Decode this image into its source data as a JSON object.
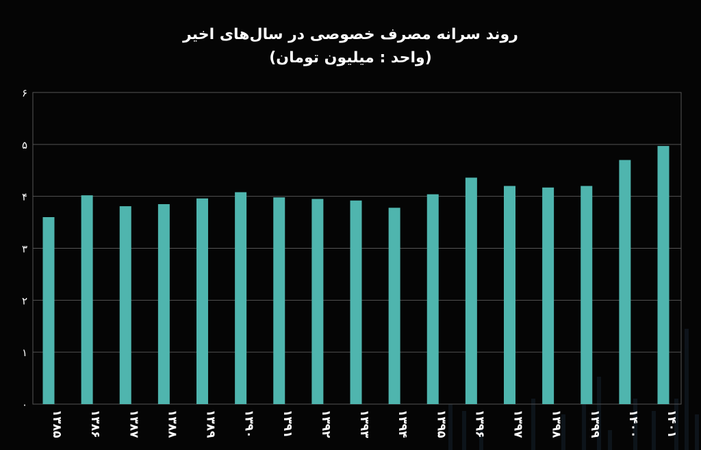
{
  "chart_data": {
    "type": "bar",
    "title": "روند سرانه مصرف خصوصی در سال‌های اخیر",
    "subtitle": "(واحد : میلیون تومان)",
    "categories": [
      "۱۳۸۵",
      "۱۳۸۶",
      "۱۳۸۷",
      "۱۳۸۸",
      "۱۳۸۹",
      "۱۳۹۰",
      "۱۳۹۱",
      "۱۳۹۲",
      "۱۳۹۳",
      "۱۳۹۴",
      "۱۳۹۵",
      "۱۳۹۶",
      "۱۳۹۷",
      "۱۳۹۸",
      "۱۳۹۹",
      "۱۴۰۰",
      "۱۴۰۱"
    ],
    "values": [
      3.6,
      4.02,
      3.81,
      3.85,
      3.96,
      4.08,
      3.98,
      3.95,
      3.92,
      3.78,
      4.04,
      4.36,
      4.2,
      4.17,
      4.2,
      4.7,
      4.97
    ],
    "ylim": [
      0,
      6
    ],
    "yticks": [
      "۰",
      "۱",
      "۲",
      "۳",
      "۴",
      "۵",
      "۶"
    ],
    "grid": true,
    "bar_color": "#4fb5ae"
  }
}
